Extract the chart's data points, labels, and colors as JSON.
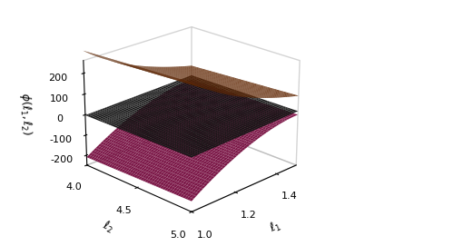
{
  "l1_range": [
    1.0,
    1.5
  ],
  "l2_range": [
    4.0,
    5.0
  ],
  "l1_ticks": [
    1.0,
    1.2,
    1.4
  ],
  "l2_ticks": [
    4.0,
    4.5,
    5.0
  ],
  "z_ticks": [
    -200,
    -100,
    0,
    100,
    200
  ],
  "zlim": [
    -250,
    260
  ],
  "xlabel": "$\\ell_1$",
  "ylabel": "$\\ell_2$",
  "zlabel": "$\\phi(\\ell_1,\\ell_2)$",
  "surface_orange_color": "#E06010",
  "surface_dark_color": "#181818",
  "surface_purple_color": "#8B1A50",
  "figsize": [
    5.0,
    2.71
  ],
  "dpi": 100,
  "elev": 22,
  "azim": -135
}
